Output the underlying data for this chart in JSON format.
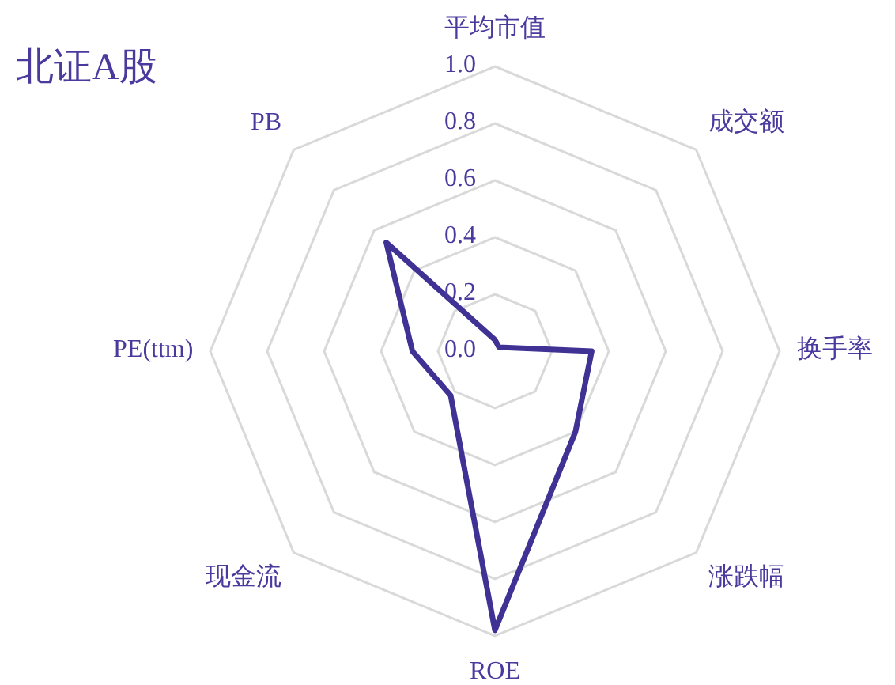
{
  "chart_data": {
    "type": "radar",
    "title": "北证A股",
    "categories": [
      "平均市值",
      "成交额",
      "换手率",
      "涨跌幅",
      "ROE",
      "现金流",
      "PE(ttm)",
      "PB"
    ],
    "series": [
      {
        "color": "#3f3294",
        "values": [
          0.04,
          0.02,
          0.34,
          0.4,
          0.98,
          0.22,
          0.29,
          0.54
        ]
      }
    ],
    "ylim": [
      0,
      1
    ],
    "yticks": [
      {
        "value": 0,
        "label": "0.0"
      },
      0.2,
      0.4,
      0.6,
      0.8,
      {
        "value": 1,
        "label": "1.0"
      }
    ],
    "grid": true
  }
}
